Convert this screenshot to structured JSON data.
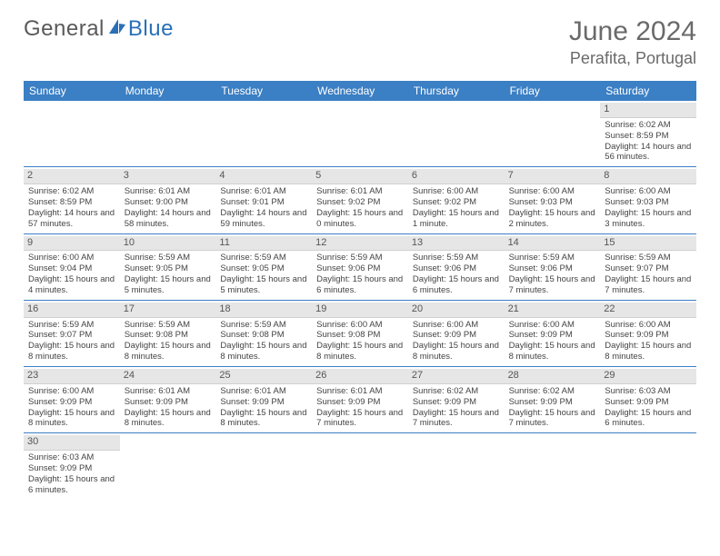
{
  "logo": {
    "part1": "General",
    "part2": "Blue"
  },
  "title": "June 2024",
  "location": "Perafita, Portugal",
  "colors": {
    "header_bg": "#3b7fc4",
    "header_text": "#ffffff",
    "daynum_bg": "#e6e6e6",
    "row_border": "#3b7fc4",
    "body_text": "#444444",
    "title_text": "#6a6a6a"
  },
  "weekdays": [
    "Sunday",
    "Monday",
    "Tuesday",
    "Wednesday",
    "Thursday",
    "Friday",
    "Saturday"
  ],
  "weeks": [
    [
      null,
      null,
      null,
      null,
      null,
      null,
      {
        "n": "1",
        "sr": "Sunrise: 6:02 AM",
        "ss": "Sunset: 8:59 PM",
        "dl": "Daylight: 14 hours and 56 minutes."
      }
    ],
    [
      {
        "n": "2",
        "sr": "Sunrise: 6:02 AM",
        "ss": "Sunset: 8:59 PM",
        "dl": "Daylight: 14 hours and 57 minutes."
      },
      {
        "n": "3",
        "sr": "Sunrise: 6:01 AM",
        "ss": "Sunset: 9:00 PM",
        "dl": "Daylight: 14 hours and 58 minutes."
      },
      {
        "n": "4",
        "sr": "Sunrise: 6:01 AM",
        "ss": "Sunset: 9:01 PM",
        "dl": "Daylight: 14 hours and 59 minutes."
      },
      {
        "n": "5",
        "sr": "Sunrise: 6:01 AM",
        "ss": "Sunset: 9:02 PM",
        "dl": "Daylight: 15 hours and 0 minutes."
      },
      {
        "n": "6",
        "sr": "Sunrise: 6:00 AM",
        "ss": "Sunset: 9:02 PM",
        "dl": "Daylight: 15 hours and 1 minute."
      },
      {
        "n": "7",
        "sr": "Sunrise: 6:00 AM",
        "ss": "Sunset: 9:03 PM",
        "dl": "Daylight: 15 hours and 2 minutes."
      },
      {
        "n": "8",
        "sr": "Sunrise: 6:00 AM",
        "ss": "Sunset: 9:03 PM",
        "dl": "Daylight: 15 hours and 3 minutes."
      }
    ],
    [
      {
        "n": "9",
        "sr": "Sunrise: 6:00 AM",
        "ss": "Sunset: 9:04 PM",
        "dl": "Daylight: 15 hours and 4 minutes."
      },
      {
        "n": "10",
        "sr": "Sunrise: 5:59 AM",
        "ss": "Sunset: 9:05 PM",
        "dl": "Daylight: 15 hours and 5 minutes."
      },
      {
        "n": "11",
        "sr": "Sunrise: 5:59 AM",
        "ss": "Sunset: 9:05 PM",
        "dl": "Daylight: 15 hours and 5 minutes."
      },
      {
        "n": "12",
        "sr": "Sunrise: 5:59 AM",
        "ss": "Sunset: 9:06 PM",
        "dl": "Daylight: 15 hours and 6 minutes."
      },
      {
        "n": "13",
        "sr": "Sunrise: 5:59 AM",
        "ss": "Sunset: 9:06 PM",
        "dl": "Daylight: 15 hours and 6 minutes."
      },
      {
        "n": "14",
        "sr": "Sunrise: 5:59 AM",
        "ss": "Sunset: 9:06 PM",
        "dl": "Daylight: 15 hours and 7 minutes."
      },
      {
        "n": "15",
        "sr": "Sunrise: 5:59 AM",
        "ss": "Sunset: 9:07 PM",
        "dl": "Daylight: 15 hours and 7 minutes."
      }
    ],
    [
      {
        "n": "16",
        "sr": "Sunrise: 5:59 AM",
        "ss": "Sunset: 9:07 PM",
        "dl": "Daylight: 15 hours and 8 minutes."
      },
      {
        "n": "17",
        "sr": "Sunrise: 5:59 AM",
        "ss": "Sunset: 9:08 PM",
        "dl": "Daylight: 15 hours and 8 minutes."
      },
      {
        "n": "18",
        "sr": "Sunrise: 5:59 AM",
        "ss": "Sunset: 9:08 PM",
        "dl": "Daylight: 15 hours and 8 minutes."
      },
      {
        "n": "19",
        "sr": "Sunrise: 6:00 AM",
        "ss": "Sunset: 9:08 PM",
        "dl": "Daylight: 15 hours and 8 minutes."
      },
      {
        "n": "20",
        "sr": "Sunrise: 6:00 AM",
        "ss": "Sunset: 9:09 PM",
        "dl": "Daylight: 15 hours and 8 minutes."
      },
      {
        "n": "21",
        "sr": "Sunrise: 6:00 AM",
        "ss": "Sunset: 9:09 PM",
        "dl": "Daylight: 15 hours and 8 minutes."
      },
      {
        "n": "22",
        "sr": "Sunrise: 6:00 AM",
        "ss": "Sunset: 9:09 PM",
        "dl": "Daylight: 15 hours and 8 minutes."
      }
    ],
    [
      {
        "n": "23",
        "sr": "Sunrise: 6:00 AM",
        "ss": "Sunset: 9:09 PM",
        "dl": "Daylight: 15 hours and 8 minutes."
      },
      {
        "n": "24",
        "sr": "Sunrise: 6:01 AM",
        "ss": "Sunset: 9:09 PM",
        "dl": "Daylight: 15 hours and 8 minutes."
      },
      {
        "n": "25",
        "sr": "Sunrise: 6:01 AM",
        "ss": "Sunset: 9:09 PM",
        "dl": "Daylight: 15 hours and 8 minutes."
      },
      {
        "n": "26",
        "sr": "Sunrise: 6:01 AM",
        "ss": "Sunset: 9:09 PM",
        "dl": "Daylight: 15 hours and 7 minutes."
      },
      {
        "n": "27",
        "sr": "Sunrise: 6:02 AM",
        "ss": "Sunset: 9:09 PM",
        "dl": "Daylight: 15 hours and 7 minutes."
      },
      {
        "n": "28",
        "sr": "Sunrise: 6:02 AM",
        "ss": "Sunset: 9:09 PM",
        "dl": "Daylight: 15 hours and 7 minutes."
      },
      {
        "n": "29",
        "sr": "Sunrise: 6:03 AM",
        "ss": "Sunset: 9:09 PM",
        "dl": "Daylight: 15 hours and 6 minutes."
      }
    ],
    [
      {
        "n": "30",
        "sr": "Sunrise: 6:03 AM",
        "ss": "Sunset: 9:09 PM",
        "dl": "Daylight: 15 hours and 6 minutes."
      },
      null,
      null,
      null,
      null,
      null,
      null
    ]
  ]
}
